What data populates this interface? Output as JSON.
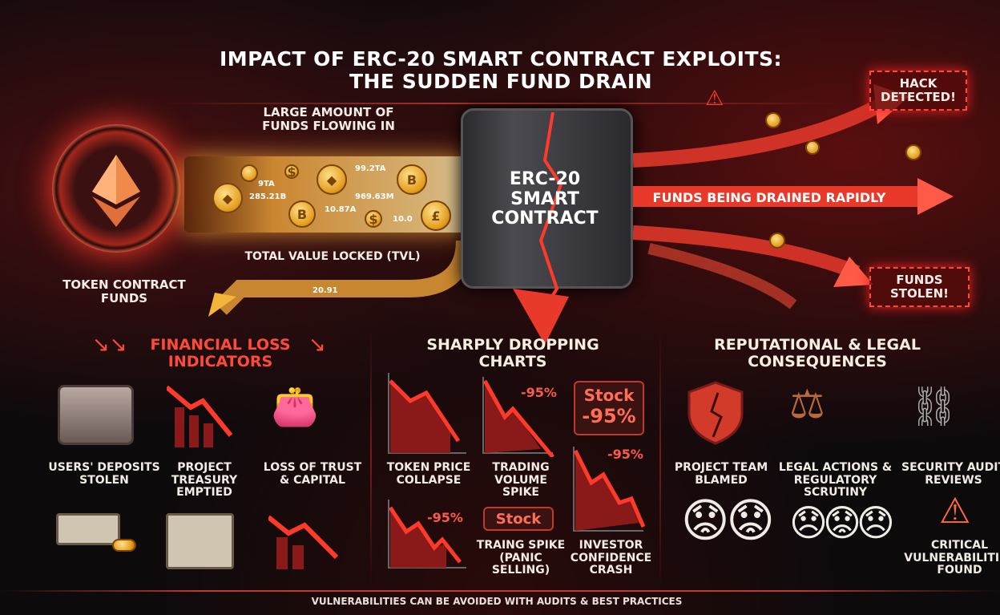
{
  "title": {
    "line1": "Impact of ERC-20 Smart Contract Exploits:",
    "line2": "The Sudden Fund Drain"
  },
  "source": {
    "label": "Token Contract Funds",
    "icon": "ethereum-icon"
  },
  "inflow": {
    "label": "Large amount of funds flowing in",
    "tvl_label": "Total Value Locked (TVL)",
    "values": [
      "9TA",
      "99.2TA",
      "285.21B",
      "969.63M",
      "10.87A",
      "10.0",
      "20.91"
    ]
  },
  "contract": {
    "line1": "ERC-20",
    "line2": "Smart",
    "line3": "Contract"
  },
  "drain": {
    "label": "Funds being drained rapidly",
    "hack": "Hack Detected!",
    "stolen": "Funds Stolen!"
  },
  "financial": {
    "header": "Financial Loss Indicators",
    "items": [
      {
        "label": "Users' Deposits Stolen"
      },
      {
        "label": "Project Treasury Emptied"
      },
      {
        "label": "Loss of Trust & Capital"
      }
    ]
  },
  "charts": {
    "header": "Sharply Dropping Charts",
    "items": [
      {
        "label": "Token Price Collapse"
      },
      {
        "label": "Trading Volume Spike",
        "badge": "-95%"
      },
      {
        "label": "Investor Confidence Crash",
        "badge": "-95%"
      },
      {
        "label": "Traing Spike (Panic Selling)",
        "badge": "Stock"
      }
    ],
    "stock_box": {
      "line1": "Stock",
      "line2": "-95%"
    },
    "bottom_pct": "-95%"
  },
  "reputation": {
    "header": "Reputational & Legal Consequences",
    "items": [
      {
        "label": "Project Team Blamed"
      },
      {
        "label": "Legal Actions & Regulatory Scrutiny"
      },
      {
        "label": "Security Audit Reviews"
      },
      {
        "label": "Critical Vulnerabilities Found"
      }
    ]
  },
  "footer": "Vulnerabilities can be avoided with audits & best practices",
  "colors": {
    "accent": "#ff4a3a",
    "gold": "#f5b53a",
    "background": "#0d0a0c"
  }
}
